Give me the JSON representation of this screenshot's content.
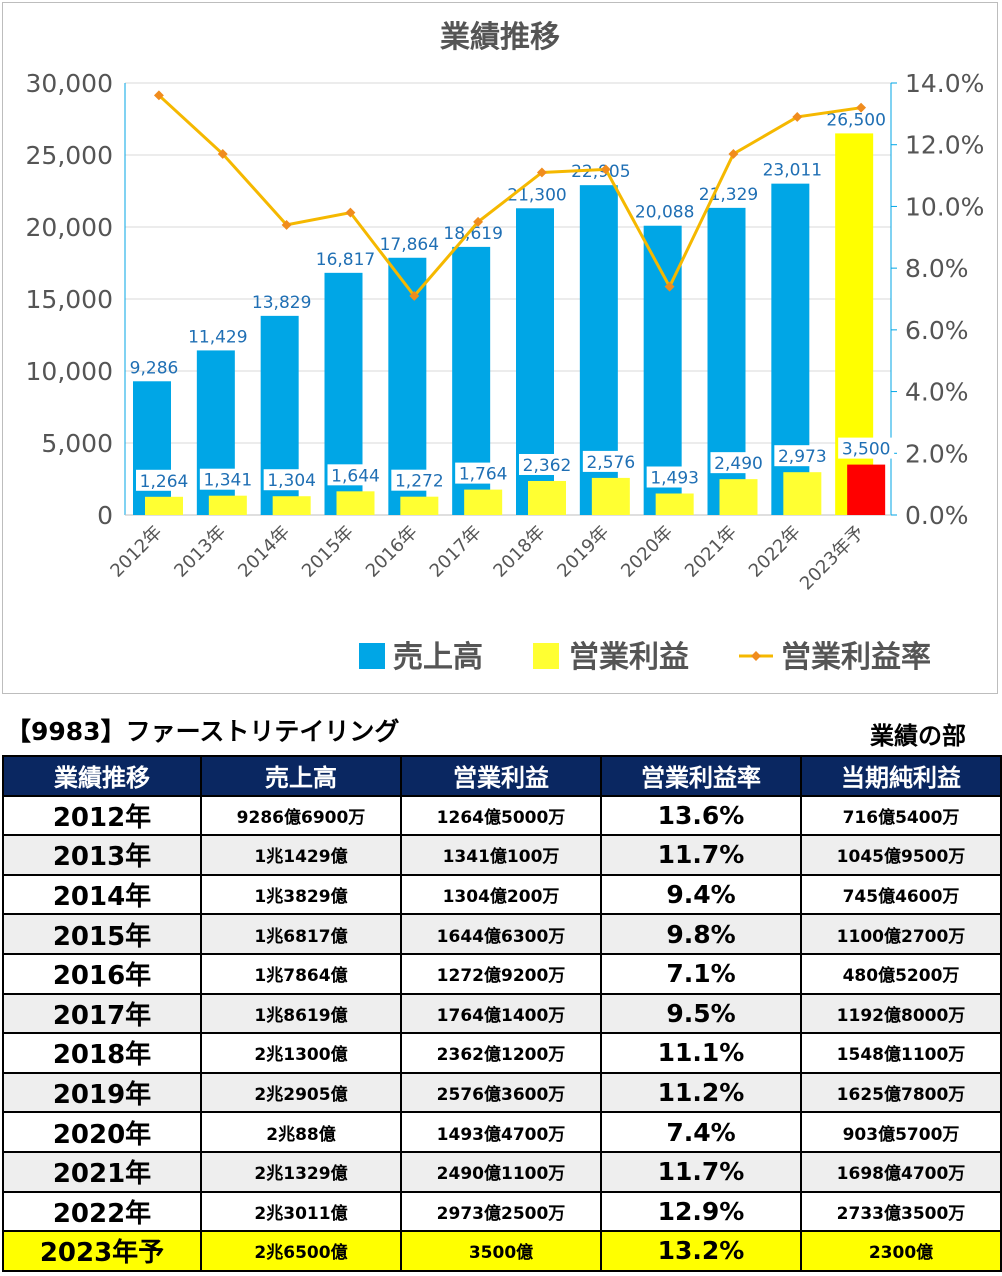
{
  "chart_data": {
    "type": "bar",
    "title": "業績推移",
    "categories": [
      "2012年",
      "2013年",
      "2014年",
      "2015年",
      "2016年",
      "2017年",
      "2018年",
      "2019年",
      "2020年",
      "2021年",
      "2022年",
      "2023年予"
    ],
    "series": [
      {
        "name": "売上高",
        "type": "bar",
        "axis": "left",
        "color": "#00a6e6",
        "values": [
          9286,
          11429,
          13829,
          16817,
          17864,
          18619,
          21300,
          22905,
          20088,
          21329,
          23011,
          26500
        ],
        "last_bar_color": "#ffff00"
      },
      {
        "name": "営業利益",
        "type": "bar",
        "axis": "left",
        "color": "#ffff32",
        "values": [
          1264,
          1341,
          1304,
          1644,
          1272,
          1764,
          2362,
          2576,
          1493,
          2490,
          2973,
          3500
        ],
        "last_bar_color": "#ff0000"
      },
      {
        "name": "営業利益率",
        "type": "line",
        "axis": "right",
        "color": "#f5b800",
        "marker_color": "#f08c1e",
        "values": [
          13.6,
          11.7,
          9.4,
          9.8,
          7.1,
          9.5,
          11.1,
          11.2,
          7.4,
          11.7,
          12.9,
          13.2
        ]
      }
    ],
    "data_labels": {
      "売上高": [
        "9,286",
        "11,429",
        "13,829",
        "16,817",
        "17,864",
        "18,619",
        "21,300",
        "22,905",
        "20,088",
        "21,329",
        "23,011",
        "26,500"
      ],
      "営業利益": [
        "1,264",
        "1,341",
        "1,304",
        "1,644",
        "1,272",
        "1,764",
        "2,362",
        "2,576",
        "1,493",
        "2,490",
        "2,973",
        "3,500"
      ]
    },
    "ylim": [
      0,
      30000
    ],
    "y_ticks": [
      "0",
      "5,000",
      "10,000",
      "15,000",
      "20,000",
      "25,000",
      "30,000"
    ],
    "y2lim": [
      0,
      14
    ],
    "y2_ticks": [
      "0.0%",
      "2.0%",
      "4.0%",
      "6.0%",
      "8.0%",
      "10.0%",
      "12.0%",
      "14.0%"
    ],
    "grid": true,
    "legend_position": "bottom-right"
  },
  "header": {
    "company": "【9983】ファーストリテイリング",
    "section": "業績の部"
  },
  "table": {
    "columns": [
      "業績推移",
      "売上高",
      "営業利益",
      "営業利益率",
      "当期純利益"
    ],
    "rows": [
      [
        "2012年",
        "9286億6900万",
        "1264億5000万",
        "13.6%",
        "716億5400万"
      ],
      [
        "2013年",
        "1兆1429億",
        "1341億100万",
        "11.7%",
        "1045億9500万"
      ],
      [
        "2014年",
        "1兆3829億",
        "1304億200万",
        "9.4%",
        "745億4600万"
      ],
      [
        "2015年",
        "1兆6817億",
        "1644億6300万",
        "9.8%",
        "1100億2700万"
      ],
      [
        "2016年",
        "1兆7864億",
        "1272億9200万",
        "7.1%",
        "480億5200万"
      ],
      [
        "2017年",
        "1兆8619億",
        "1764億1400万",
        "9.5%",
        "1192億8000万"
      ],
      [
        "2018年",
        "2兆1300億",
        "2362億1200万",
        "11.1%",
        "1548億1100万"
      ],
      [
        "2019年",
        "2兆2905億",
        "2576億3600万",
        "11.2%",
        "1625億7800万"
      ],
      [
        "2020年",
        "2兆88億",
        "1493億4700万",
        "7.4%",
        "903億5700万"
      ],
      [
        "2021年",
        "2兆1329億",
        "2490億1100万",
        "11.7%",
        "1698億4700万"
      ],
      [
        "2022年",
        "2兆3011億",
        "2973億2500万",
        "12.9%",
        "2733億3500万"
      ],
      [
        "2023年予",
        "2兆6500億",
        "3500億",
        "13.2%",
        "2300億"
      ]
    ],
    "forecast_row_color": "#ffff00"
  }
}
